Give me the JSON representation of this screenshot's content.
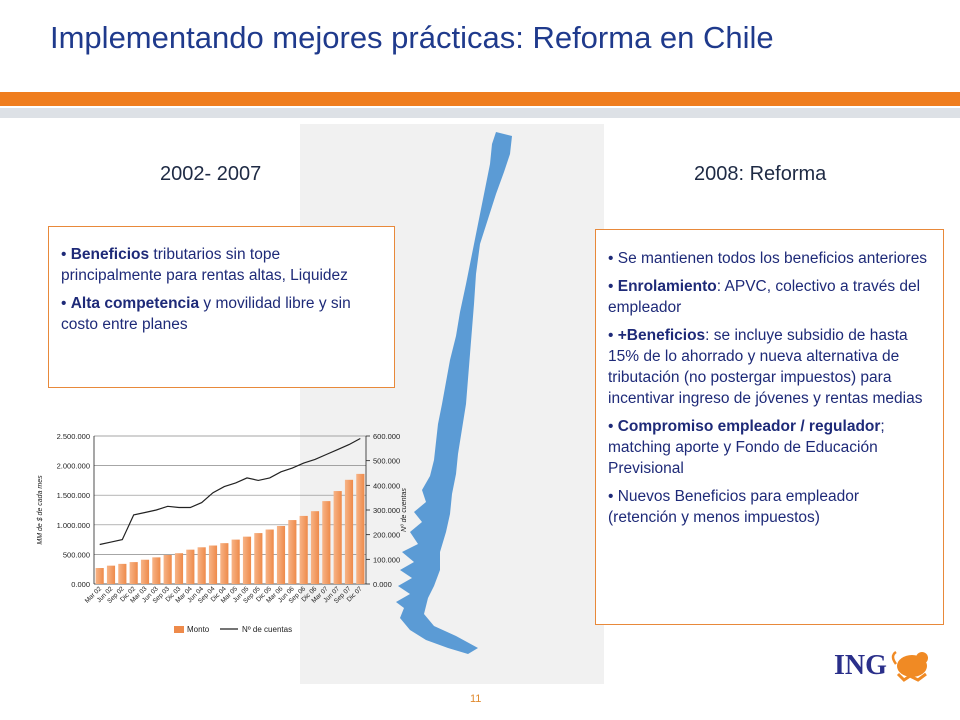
{
  "slide": {
    "title": "Implementando mejores prácticas: Reforma en Chile",
    "page_number": "11",
    "colors": {
      "title": "#1f3a8c",
      "accent_bar": "#ef7d1e",
      "box_border": "#e8893a",
      "body_text": "#1e2a78",
      "map": "#5b9bd5"
    }
  },
  "left": {
    "period": "2002- 2007",
    "bullets": [
      {
        "bold": "Beneficios",
        "text": " tributarios sin tope principalmente para rentas altas, Liquidez"
      },
      {
        "bold": "Alta competencia",
        "text": " y movilidad libre y sin costo entre planes"
      }
    ]
  },
  "right": {
    "period": "2008: Reforma",
    "bullets": [
      {
        "bold": "",
        "text": "Se mantienen todos los beneficios anteriores"
      },
      {
        "bold": "Enrolamiento",
        "text": ": APVC, colectivo a través del empleador"
      },
      {
        "bold": "+Beneficios",
        "text": ": se incluye subsidio de hasta 15% de lo ahorrado y nueva alternativa de tributación (no postergar impuestos) para incentivar ingreso de jóvenes y rentas medias"
      },
      {
        "bold": "Compromiso empleador / regulador",
        "text": "; matching aporte y Fondo de Educación Previsional"
      },
      {
        "bold": "",
        "text": "Nuevos Beneficios para empleador (retención y menos impuestos)"
      }
    ]
  },
  "logo": {
    "text": "ING",
    "icon": "lion-icon"
  },
  "chart_data": {
    "type": "bar",
    "categories": [
      "Mar 02",
      "Jun 02",
      "Sep 02",
      "Dic 02",
      "Mar 03",
      "Jun 03",
      "Sep 03",
      "Dic 03",
      "Mar 04",
      "Jun 04",
      "Sep 04",
      "Dic 04",
      "Mar 05",
      "Jun 05",
      "Sep 05",
      "Dic 05",
      "Mar 06",
      "Jun 06",
      "Sep 06",
      "Dic 06",
      "Mar 07",
      "Jun 07",
      "Sep 07",
      "Dic 07"
    ],
    "series": [
      {
        "name": "Monto",
        "type": "bar",
        "axis": "left",
        "color": "#ee8a4a",
        "values": [
          270000,
          310000,
          340000,
          370000,
          410000,
          450000,
          490000,
          520000,
          580000,
          620000,
          650000,
          690000,
          750000,
          800000,
          860000,
          920000,
          980000,
          1080000,
          1150000,
          1230000,
          1400000,
          1570000,
          1760000,
          1860000
        ]
      },
      {
        "name": "Nº de cuentas",
        "type": "line",
        "axis": "right",
        "color": "#222222",
        "values": [
          160000,
          170000,
          180000,
          280000,
          290000,
          300000,
          315000,
          310000,
          310000,
          330000,
          370000,
          395000,
          410000,
          430000,
          420000,
          430000,
          455000,
          470000,
          490000,
          505000,
          525000,
          545000,
          565000,
          590000
        ]
      }
    ],
    "ylabel": "MM de $ de cada mes",
    "y2label": "Nº de cuentas",
    "ylim": [
      0,
      2500000
    ],
    "y2lim": [
      0,
      600000
    ],
    "yticks": [
      "0.000",
      "500.000",
      "1.000.000",
      "1.500.000",
      "2.000.000",
      "2.500.000"
    ],
    "y2ticks": [
      "0.000",
      "100.000",
      "200.000",
      "300.000",
      "400.000",
      "500.000",
      "600.000"
    ],
    "grid": true,
    "legend": "bottom"
  }
}
